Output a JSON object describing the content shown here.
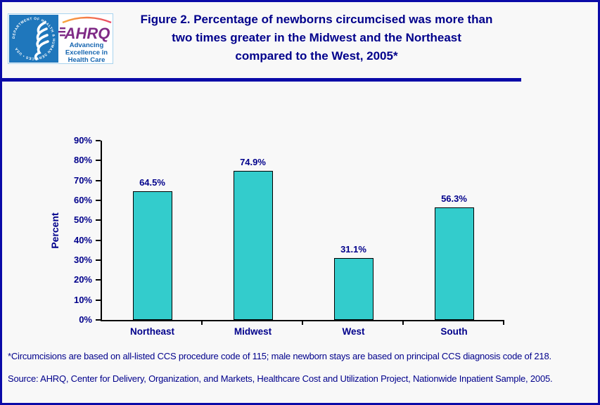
{
  "page": {
    "background": "#F8F8F8",
    "border_color": "#0A0AA8"
  },
  "header": {
    "logo": {
      "seal_text": "DEPARTMENT OF HEALTH & HUMAN SERVICES • USA",
      "acronym": "AHRQ",
      "tagline_lines": [
        "Advancing",
        "Excellence in",
        "Health Care"
      ],
      "hhs_blue": "#1F77BC",
      "ahrq_purple": "#7F2B86",
      "tagline_blue": "#1565B0"
    },
    "title_lines": [
      "Figure 2. Percentage of newborns circumcised was more than",
      "two times greater in the Midwest and the Northeast",
      "compared to the West, 2005*"
    ],
    "title_color": "#00008B"
  },
  "chart_data": {
    "type": "bar",
    "title": "",
    "categories": [
      "Northeast",
      "Midwest",
      "West",
      "South"
    ],
    "values": [
      64.5,
      74.9,
      31.1,
      56.3
    ],
    "value_labels": [
      "64.5%",
      "74.9%",
      "31.1%",
      "56.3%"
    ],
    "xlabel": "",
    "ylabel": "Percent",
    "ylim": [
      0,
      90
    ],
    "ytick_step": 10,
    "ytick_labels": [
      "0%",
      "10%",
      "20%",
      "30%",
      "40%",
      "50%",
      "60%",
      "70%",
      "80%",
      "90%"
    ],
    "grid": false,
    "legend": "none",
    "bar_color": "#33CCCC",
    "bar_border_color": "#000000",
    "axis_text_color": "#00008B"
  },
  "footnotes": [
    "*Circumcisions are based on all-listed CCS procedure code of 115; male newborn stays are based on principal CCS diagnosis code of 218.",
    "Source: AHRQ, Center for Delivery, Organization, and Markets, Healthcare Cost and Utilization Project, Nationwide Inpatient Sample, 2005."
  ]
}
